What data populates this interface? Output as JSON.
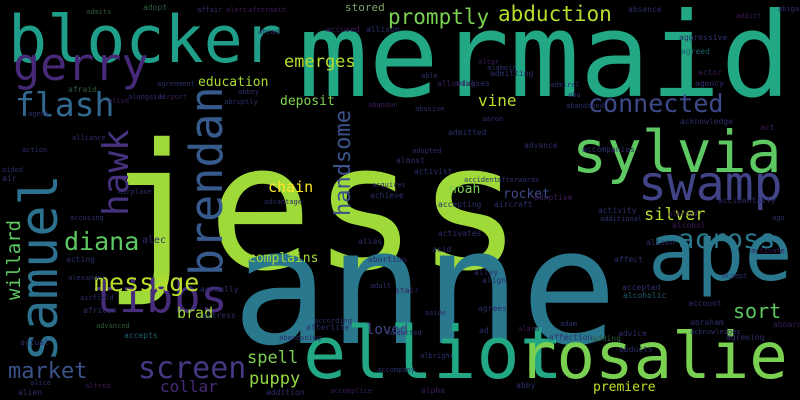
{
  "words": [
    "jess",
    "anne",
    "mermaid",
    "blocker",
    "elliot",
    "rosalie",
    "sylvia",
    "swamp",
    "ape",
    "gerry",
    "flash",
    "samuel",
    "hawk",
    "brendan",
    "tibbs",
    "message",
    "diana",
    "market",
    "screen",
    "collar",
    "willard",
    "handsome",
    "chain",
    "emerges",
    "education",
    "deposit",
    "promptly",
    "abduction",
    "connected",
    "vine",
    "across",
    "silver",
    "sort",
    "spell",
    "puppy",
    "loved",
    "brad",
    "complains",
    "noah",
    "rocket",
    "premiere",
    "stored",
    "accused",
    "allison",
    "affair",
    "alert",
    "aftermath",
    "adopt",
    "admits",
    "absence",
    "addict",
    "actor",
    "agency",
    "agreed",
    "aggressive",
    "agreement",
    "alive",
    "afraid",
    "alongside",
    "airport",
    "abruptly",
    "abbey",
    "abandoned",
    "abandon",
    "abusive",
    "admitting",
    "altar",
    "allowing",
    "advises",
    "abu",
    "acknowledge",
    "act",
    "accompanies",
    "accidentally",
    "alerted",
    "activity",
    "additional",
    "alcohol",
    "alison",
    "activate",
    "affect",
    "accepted",
    "account",
    "abraham",
    "aboard",
    "agreeing",
    "acknowledges",
    "advice",
    "alcoholic",
    "adding",
    "adam",
    "alarm",
    "ad",
    "affection",
    "albright",
    "alpha",
    "addition",
    "afterlife",
    "abandoning",
    "actually",
    "actress",
    "airfield",
    "african",
    "advanced",
    "actual",
    "alien",
    "alice",
    "alfred",
    "abby",
    "accomplice",
    "accompany",
    "adult",
    "stair",
    "according",
    "abortion",
    "alley",
    "align",
    "agrees",
    "abducts",
    "accepts",
    "alexander",
    "acting",
    "alec",
    "accusing",
    "air",
    "aided",
    "action",
    "alliance",
    "airplane",
    "advantage",
    "aircraft",
    "advance",
    "activist",
    "accident",
    "achieve",
    "acquires",
    "afterwards",
    "acid",
    "activates",
    "adoptive",
    "alias",
    "accepting",
    "admitted",
    "almost",
    "adopted",
    "aaron",
    "admiral",
    "abducted",
    "ago",
    "accept",
    "ahead",
    "alamein",
    "able",
    "agent",
    "abigail",
    "aside"
  ]
}
